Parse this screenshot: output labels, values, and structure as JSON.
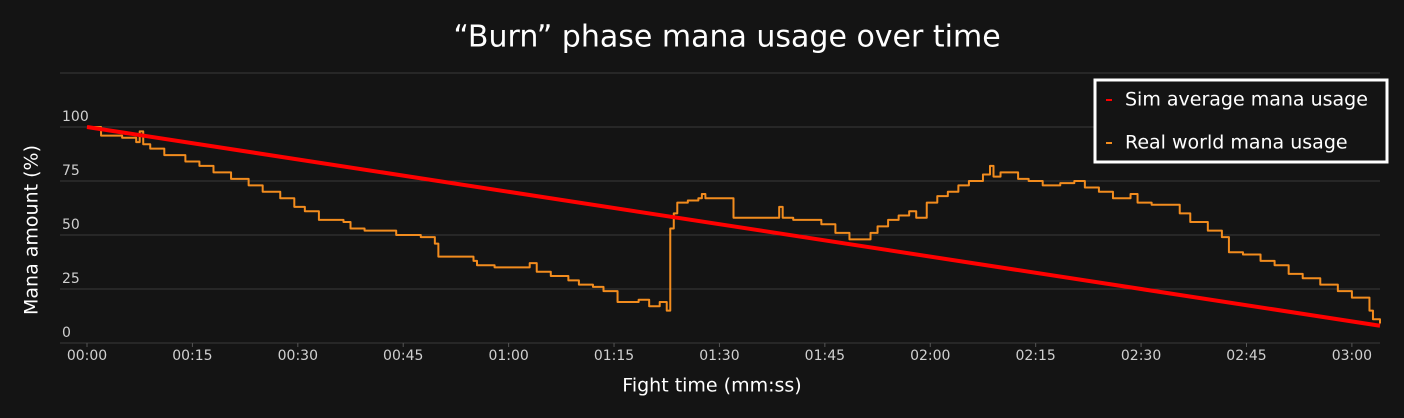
{
  "chart_data": {
    "type": "line",
    "title": "“Burn” phase mana usage over time",
    "x_label": "Fight time (mm:ss)",
    "y_label": "Mana amount (%)",
    "xlim": [
      0,
      184
    ],
    "ylim": [
      0,
      125
    ],
    "xticks": [
      {
        "value": 0,
        "label": "00:00"
      },
      {
        "value": 15,
        "label": "00:15"
      },
      {
        "value": 30,
        "label": "00:30"
      },
      {
        "value": 45,
        "label": "00:45"
      },
      {
        "value": 60,
        "label": "01:00"
      },
      {
        "value": 75,
        "label": "01:15"
      },
      {
        "value": 90,
        "label": "01:30"
      },
      {
        "value": 105,
        "label": "01:45"
      },
      {
        "value": 120,
        "label": "02:00"
      },
      {
        "value": 135,
        "label": "02:15"
      },
      {
        "value": 150,
        "label": "02:30"
      },
      {
        "value": 165,
        "label": "02:45"
      },
      {
        "value": 180,
        "label": "03:00"
      }
    ],
    "yticks": [
      0,
      25,
      50,
      75,
      100
    ],
    "grid": true,
    "legend": "upper right",
    "series": [
      {
        "name": "Sim average mana usage",
        "color": "#ff0000",
        "x": [
          0,
          184
        ],
        "values": [
          100,
          8
        ]
      },
      {
        "name": "Real world mana usage",
        "color": "#f28c1e",
        "x": [
          0,
          2,
          2,
          5,
          5,
          7,
          7,
          7.5,
          7.5,
          8,
          8,
          9,
          9,
          11,
          11,
          14,
          14,
          16,
          16,
          18,
          18,
          20.5,
          20.5,
          23,
          23,
          25,
          25,
          27.5,
          27.5,
          29.5,
          29.5,
          31,
          31,
          33,
          33,
          36.5,
          36.5,
          37.5,
          37.5,
          39.5,
          39.5,
          44,
          44,
          47.5,
          47.5,
          49.5,
          49.5,
          50,
          50,
          55,
          55,
          55.5,
          55.5,
          58,
          58,
          63,
          63,
          64,
          64,
          66,
          66,
          68.5,
          68.5,
          70,
          70,
          72,
          72,
          73.5,
          73.5,
          75.5,
          75.5,
          78.5,
          78.5,
          80,
          80,
          81.5,
          81.5,
          82.5,
          82.5,
          83,
          83,
          83.5,
          83.5,
          84,
          84,
          85.5,
          85.5,
          87,
          87,
          87.5,
          87.5,
          88,
          88,
          92,
          92,
          98.5,
          98.5,
          99,
          99,
          100.5,
          100.5,
          104.5,
          104.5,
          106.5,
          106.5,
          108.5,
          108.5,
          111.5,
          111.5,
          112.5,
          112.5,
          114,
          114,
          115.5,
          115.5,
          117,
          117,
          118,
          118,
          119.5,
          119.5,
          121,
          121,
          122.5,
          122.5,
          124,
          124,
          125.5,
          125.5,
          127.5,
          127.5,
          128.5,
          128.5,
          129,
          129,
          130,
          130,
          132.5,
          132.5,
          134,
          134,
          136,
          136,
          138.5,
          138.5,
          140.5,
          140.5,
          142,
          142,
          144,
          144,
          146,
          146,
          148.5,
          148.5,
          149.5,
          149.5,
          151.5,
          151.5,
          155.5,
          155.5,
          157,
          157,
          159.5,
          159.5,
          161.5,
          161.5,
          162.5,
          162.5,
          164.5,
          164.5,
          167,
          167,
          169,
          169,
          171,
          171,
          173,
          173,
          175.5,
          175.5,
          178,
          178,
          180,
          180,
          182.5,
          182.5,
          183,
          183,
          184,
          184
        ],
        "values": [
          100,
          100,
          96,
          96,
          95,
          95,
          93,
          93,
          98,
          98,
          92,
          92,
          90,
          90,
          87,
          87,
          84,
          84,
          82,
          82,
          79,
          79,
          76,
          76,
          73,
          73,
          70,
          70,
          67,
          67,
          63,
          63,
          61,
          61,
          57,
          57,
          56,
          56,
          53,
          53,
          52,
          52,
          50,
          50,
          49,
          49,
          46,
          46,
          40,
          40,
          38,
          38,
          36,
          36,
          35,
          35,
          37,
          37,
          33,
          33,
          31,
          31,
          29,
          29,
          27,
          27,
          26,
          26,
          24,
          24,
          19,
          19,
          20,
          20,
          17,
          17,
          19,
          19,
          15,
          15,
          53,
          53,
          60,
          60,
          65,
          65,
          66,
          66,
          67,
          67,
          69,
          69,
          67,
          67,
          58,
          58,
          63,
          63,
          58,
          58,
          57,
          57,
          55,
          55,
          51,
          51,
          48,
          48,
          51,
          51,
          54,
          54,
          57,
          57,
          59,
          59,
          61,
          61,
          58,
          58,
          65,
          65,
          68,
          68,
          70,
          70,
          73,
          73,
          75,
          75,
          78,
          78,
          82,
          82,
          77,
          77,
          79,
          79,
          76,
          76,
          75,
          75,
          73,
          73,
          74,
          74,
          75,
          75,
          72,
          72,
          70,
          70,
          67,
          67,
          69,
          69,
          65,
          65,
          64,
          64,
          60,
          60,
          56,
          56,
          52,
          52,
          49,
          49,
          42,
          42,
          41,
          41,
          38,
          38,
          36,
          36,
          32,
          32,
          30,
          30,
          27,
          27,
          24,
          24,
          21,
          21,
          15,
          15,
          11,
          11,
          9
        ]
      }
    ]
  }
}
